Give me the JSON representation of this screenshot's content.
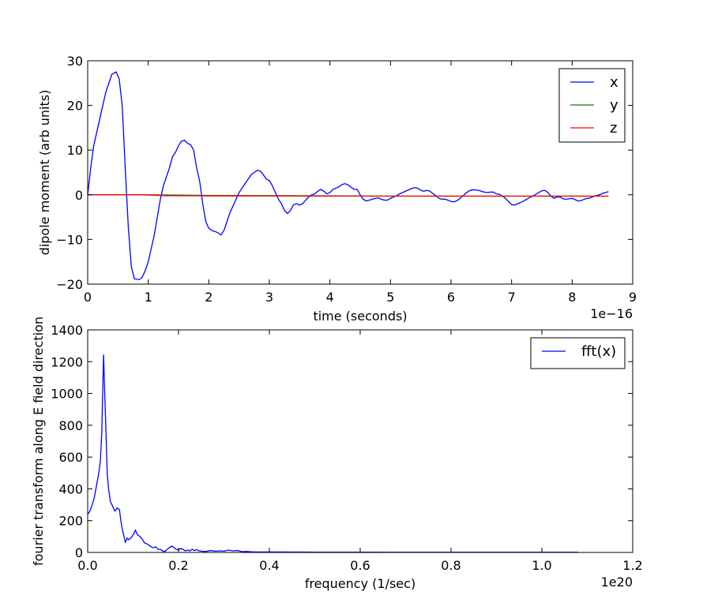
{
  "chart_data": [
    {
      "type": "line",
      "xlabel": "time (seconds)",
      "ylabel": "dipole moment (arb units)",
      "x_offset_label": "1e−16",
      "xlim": [
        0,
        9
      ],
      "ylim": [
        -20,
        30
      ],
      "xticks": [
        "0",
        "1",
        "2",
        "3",
        "4",
        "5",
        "6",
        "7",
        "8",
        "9"
      ],
      "yticks": [
        "−20",
        "−10",
        "0",
        "10",
        "20",
        "30"
      ],
      "legend_position": "top-right",
      "series": [
        {
          "name": "x",
          "color": "#0000ff",
          "points": [
            [
              0,
              0
            ],
            [
              0.05,
              6
            ],
            [
              0.1,
              11
            ],
            [
              0.2,
              17
            ],
            [
              0.3,
              23
            ],
            [
              0.4,
              27
            ],
            [
              0.47,
              27.5
            ],
            [
              0.52,
              26
            ],
            [
              0.57,
              20
            ],
            [
              0.62,
              6
            ],
            [
              0.67,
              -7
            ],
            [
              0.72,
              -16
            ],
            [
              0.77,
              -18.8
            ],
            [
              0.85,
              -19
            ],
            [
              0.9,
              -18.5
            ],
            [
              0.95,
              -17
            ],
            [
              1.0,
              -15
            ],
            [
              1.05,
              -12
            ],
            [
              1.1,
              -9
            ],
            [
              1.15,
              -5
            ],
            [
              1.2,
              -1
            ],
            [
              1.25,
              2
            ],
            [
              1.3,
              4
            ],
            [
              1.35,
              6
            ],
            [
              1.4,
              8.5
            ],
            [
              1.45,
              9.5
            ],
            [
              1.5,
              11
            ],
            [
              1.55,
              12
            ],
            [
              1.6,
              12.2
            ],
            [
              1.65,
              11.5
            ],
            [
              1.7,
              11.2
            ],
            [
              1.75,
              10
            ],
            [
              1.8,
              6
            ],
            [
              1.85,
              3
            ],
            [
              1.9,
              -2
            ],
            [
              1.95,
              -6
            ],
            [
              2.0,
              -7.5
            ],
            [
              2.05,
              -8
            ],
            [
              2.1,
              -8.2
            ],
            [
              2.15,
              -8.5
            ],
            [
              2.2,
              -9
            ],
            [
              2.25,
              -8
            ],
            [
              2.3,
              -6
            ],
            [
              2.35,
              -4
            ],
            [
              2.4,
              -2.5
            ],
            [
              2.45,
              -1
            ],
            [
              2.5,
              0.5
            ],
            [
              2.55,
              1.5
            ],
            [
              2.6,
              2.5
            ],
            [
              2.65,
              3.5
            ],
            [
              2.7,
              4.5
            ],
            [
              2.75,
              5
            ],
            [
              2.8,
              5.5
            ],
            [
              2.85,
              5.3
            ],
            [
              2.9,
              4.5
            ],
            [
              2.95,
              3.5
            ],
            [
              3.0,
              3.2
            ],
            [
              3.05,
              2
            ],
            [
              3.1,
              0.5
            ],
            [
              3.15,
              -1
            ],
            [
              3.2,
              -2
            ],
            [
              3.25,
              -3.5
            ],
            [
              3.3,
              -4.2
            ],
            [
              3.35,
              -3.5
            ],
            [
              3.4,
              -2.2
            ],
            [
              3.45,
              -2
            ],
            [
              3.5,
              -2.3
            ],
            [
              3.55,
              -2
            ],
            [
              3.6,
              -1.2
            ],
            [
              3.65,
              -0.5
            ],
            [
              3.7,
              0
            ],
            [
              3.75,
              0.2
            ],
            [
              3.8,
              0.8
            ],
            [
              3.85,
              1.2
            ],
            [
              3.9,
              0.8
            ],
            [
              3.95,
              0.2
            ],
            [
              4.0,
              0.5
            ],
            [
              4.05,
              1.2
            ],
            [
              4.1,
              1.5
            ],
            [
              4.15,
              1.8
            ],
            [
              4.2,
              2.3
            ],
            [
              4.25,
              2.5
            ],
            [
              4.3,
              2.2
            ],
            [
              4.35,
              1.7
            ],
            [
              4.4,
              1.2
            ],
            [
              4.45,
              1.2
            ],
            [
              4.5,
              0
            ],
            [
              4.55,
              -1
            ],
            [
              4.6,
              -1.4
            ],
            [
              4.65,
              -1.2
            ],
            [
              4.7,
              -1
            ],
            [
              4.75,
              -0.8
            ],
            [
              4.8,
              -0.7
            ],
            [
              4.85,
              -1
            ],
            [
              4.9,
              -1.2
            ],
            [
              4.95,
              -1.2
            ],
            [
              5.0,
              -0.8
            ],
            [
              5.05,
              -0.5
            ],
            [
              5.1,
              -0.2
            ],
            [
              5.15,
              0.2
            ],
            [
              5.2,
              0.5
            ],
            [
              5.25,
              0.8
            ],
            [
              5.3,
              1.1
            ],
            [
              5.35,
              1.4
            ],
            [
              5.4,
              1.6
            ],
            [
              5.45,
              1.5
            ],
            [
              5.5,
              1
            ],
            [
              5.55,
              0.8
            ],
            [
              5.6,
              1
            ],
            [
              5.65,
              0.8
            ],
            [
              5.7,
              0.3
            ],
            [
              5.75,
              -0.2
            ],
            [
              5.8,
              -0.8
            ],
            [
              5.85,
              -1
            ],
            [
              5.9,
              -1
            ],
            [
              5.95,
              -1.2
            ],
            [
              6.0,
              -1.5
            ],
            [
              6.05,
              -1.6
            ],
            [
              6.1,
              -1.3
            ],
            [
              6.15,
              -0.8
            ],
            [
              6.2,
              -0.2
            ],
            [
              6.25,
              0.4
            ],
            [
              6.3,
              0.9
            ],
            [
              6.35,
              1.1
            ],
            [
              6.4,
              1.1
            ],
            [
              6.45,
              1
            ],
            [
              6.5,
              0.8
            ],
            [
              6.55,
              0.6
            ],
            [
              6.6,
              0.5
            ],
            [
              6.65,
              0.6
            ],
            [
              6.7,
              0.6
            ],
            [
              6.75,
              0.2
            ],
            [
              6.8,
              0.1
            ],
            [
              6.85,
              -0.3
            ],
            [
              6.9,
              -0.8
            ],
            [
              6.95,
              -1.5
            ],
            [
              7.0,
              -2.2
            ],
            [
              7.05,
              -2.3
            ],
            [
              7.1,
              -2
            ],
            [
              7.15,
              -1.7
            ],
            [
              7.2,
              -1.4
            ],
            [
              7.25,
              -1
            ],
            [
              7.3,
              -0.6
            ],
            [
              7.35,
              -0.3
            ],
            [
              7.4,
              0.1
            ],
            [
              7.45,
              0.5
            ],
            [
              7.5,
              0.9
            ],
            [
              7.55,
              1
            ],
            [
              7.6,
              0.5
            ],
            [
              7.65,
              -0.3
            ],
            [
              7.7,
              -0.8
            ],
            [
              7.75,
              -0.5
            ],
            [
              7.8,
              -0.5
            ],
            [
              7.85,
              -0.9
            ],
            [
              7.9,
              -1
            ],
            [
              7.95,
              -0.9
            ],
            [
              8.0,
              -0.8
            ],
            [
              8.05,
              -1.1
            ],
            [
              8.1,
              -1.4
            ],
            [
              8.15,
              -1.3
            ],
            [
              8.2,
              -1
            ],
            [
              8.25,
              -0.8
            ],
            [
              8.3,
              -0.7
            ],
            [
              8.35,
              -0.4
            ],
            [
              8.4,
              -0.2
            ],
            [
              8.45,
              0
            ],
            [
              8.5,
              0.3
            ],
            [
              8.55,
              0.5
            ],
            [
              8.6,
              0.7
            ]
          ]
        },
        {
          "name": "y",
          "color": "#008000",
          "points": [
            [
              0,
              0
            ],
            [
              1.0,
              0
            ],
            [
              2.0,
              -0.15
            ],
            [
              3.0,
              -0.2
            ],
            [
              4.0,
              -0.25
            ],
            [
              5.0,
              -0.3
            ],
            [
              6.0,
              -0.3
            ],
            [
              7.0,
              -0.3
            ],
            [
              8.0,
              -0.3
            ],
            [
              8.6,
              -0.3
            ]
          ]
        },
        {
          "name": "z",
          "color": "#ff0000",
          "points": [
            [
              0,
              0
            ],
            [
              0.9,
              0
            ],
            [
              1.3,
              -0.2
            ],
            [
              2.0,
              -0.25
            ],
            [
              3.0,
              -0.28
            ],
            [
              4.0,
              -0.3
            ],
            [
              5.0,
              -0.3
            ],
            [
              6.0,
              -0.3
            ],
            [
              7.0,
              -0.3
            ],
            [
              8.0,
              -0.3
            ],
            [
              8.6,
              -0.3
            ]
          ]
        }
      ]
    },
    {
      "type": "line",
      "xlabel": "frequency (1/sec)",
      "ylabel": "fourier transform along E field direction",
      "x_offset_label": "1e20",
      "xlim": [
        0,
        1.2
      ],
      "ylim": [
        0,
        1400
      ],
      "xticks": [
        "0.0",
        "0.2",
        "0.4",
        "0.6",
        "0.8",
        "1.0",
        "1.2"
      ],
      "yticks": [
        "0",
        "200",
        "400",
        "600",
        "800",
        "1000",
        "1200",
        "1400"
      ],
      "legend_position": "top-right",
      "series": [
        {
          "name": "fft(x)",
          "color": "#0000ff",
          "points": [
            [
              0.0,
              240
            ],
            [
              0.005,
              260
            ],
            [
              0.01,
              300
            ],
            [
              0.015,
              350
            ],
            [
              0.02,
              430
            ],
            [
              0.025,
              510
            ],
            [
              0.028,
              580
            ],
            [
              0.031,
              750
            ],
            [
              0.033,
              1000
            ],
            [
              0.035,
              1245
            ],
            [
              0.037,
              1050
            ],
            [
              0.04,
              780
            ],
            [
              0.043,
              500
            ],
            [
              0.046,
              400
            ],
            [
              0.05,
              320
            ],
            [
              0.055,
              290
            ],
            [
              0.06,
              260
            ],
            [
              0.065,
              280
            ],
            [
              0.07,
              270
            ],
            [
              0.073,
              200
            ],
            [
              0.076,
              150
            ],
            [
              0.08,
              100
            ],
            [
              0.083,
              65
            ],
            [
              0.087,
              90
            ],
            [
              0.09,
              80
            ],
            [
              0.095,
              90
            ],
            [
              0.1,
              110
            ],
            [
              0.105,
              140
            ],
            [
              0.11,
              110
            ],
            [
              0.115,
              100
            ],
            [
              0.12,
              85
            ],
            [
              0.125,
              60
            ],
            [
              0.13,
              55
            ],
            [
              0.135,
              45
            ],
            [
              0.14,
              35
            ],
            [
              0.145,
              30
            ],
            [
              0.15,
              35
            ],
            [
              0.155,
              20
            ],
            [
              0.16,
              20
            ],
            [
              0.165,
              10
            ],
            [
              0.17,
              5
            ],
            [
              0.175,
              20
            ],
            [
              0.18,
              30
            ],
            [
              0.185,
              40
            ],
            [
              0.19,
              30
            ],
            [
              0.195,
              20
            ],
            [
              0.2,
              15
            ],
            [
              0.205,
              25
            ],
            [
              0.21,
              20
            ],
            [
              0.215,
              10
            ],
            [
              0.22,
              15
            ],
            [
              0.225,
              10
            ],
            [
              0.23,
              20
            ],
            [
              0.235,
              12
            ],
            [
              0.24,
              18
            ],
            [
              0.245,
              10
            ],
            [
              0.25,
              8
            ],
            [
              0.26,
              6
            ],
            [
              0.27,
              12
            ],
            [
              0.28,
              8
            ],
            [
              0.29,
              10
            ],
            [
              0.3,
              8
            ],
            [
              0.31,
              15
            ],
            [
              0.32,
              10
            ],
            [
              0.33,
              12
            ],
            [
              0.34,
              5
            ],
            [
              0.35,
              6
            ],
            [
              0.36,
              4
            ],
            [
              0.37,
              3
            ],
            [
              0.4,
              3
            ],
            [
              0.5,
              2
            ],
            [
              0.6,
              2
            ],
            [
              0.7,
              1
            ],
            [
              0.8,
              1
            ],
            [
              0.9,
              1
            ],
            [
              1.0,
              1
            ],
            [
              1.08,
              1
            ]
          ]
        }
      ]
    }
  ]
}
